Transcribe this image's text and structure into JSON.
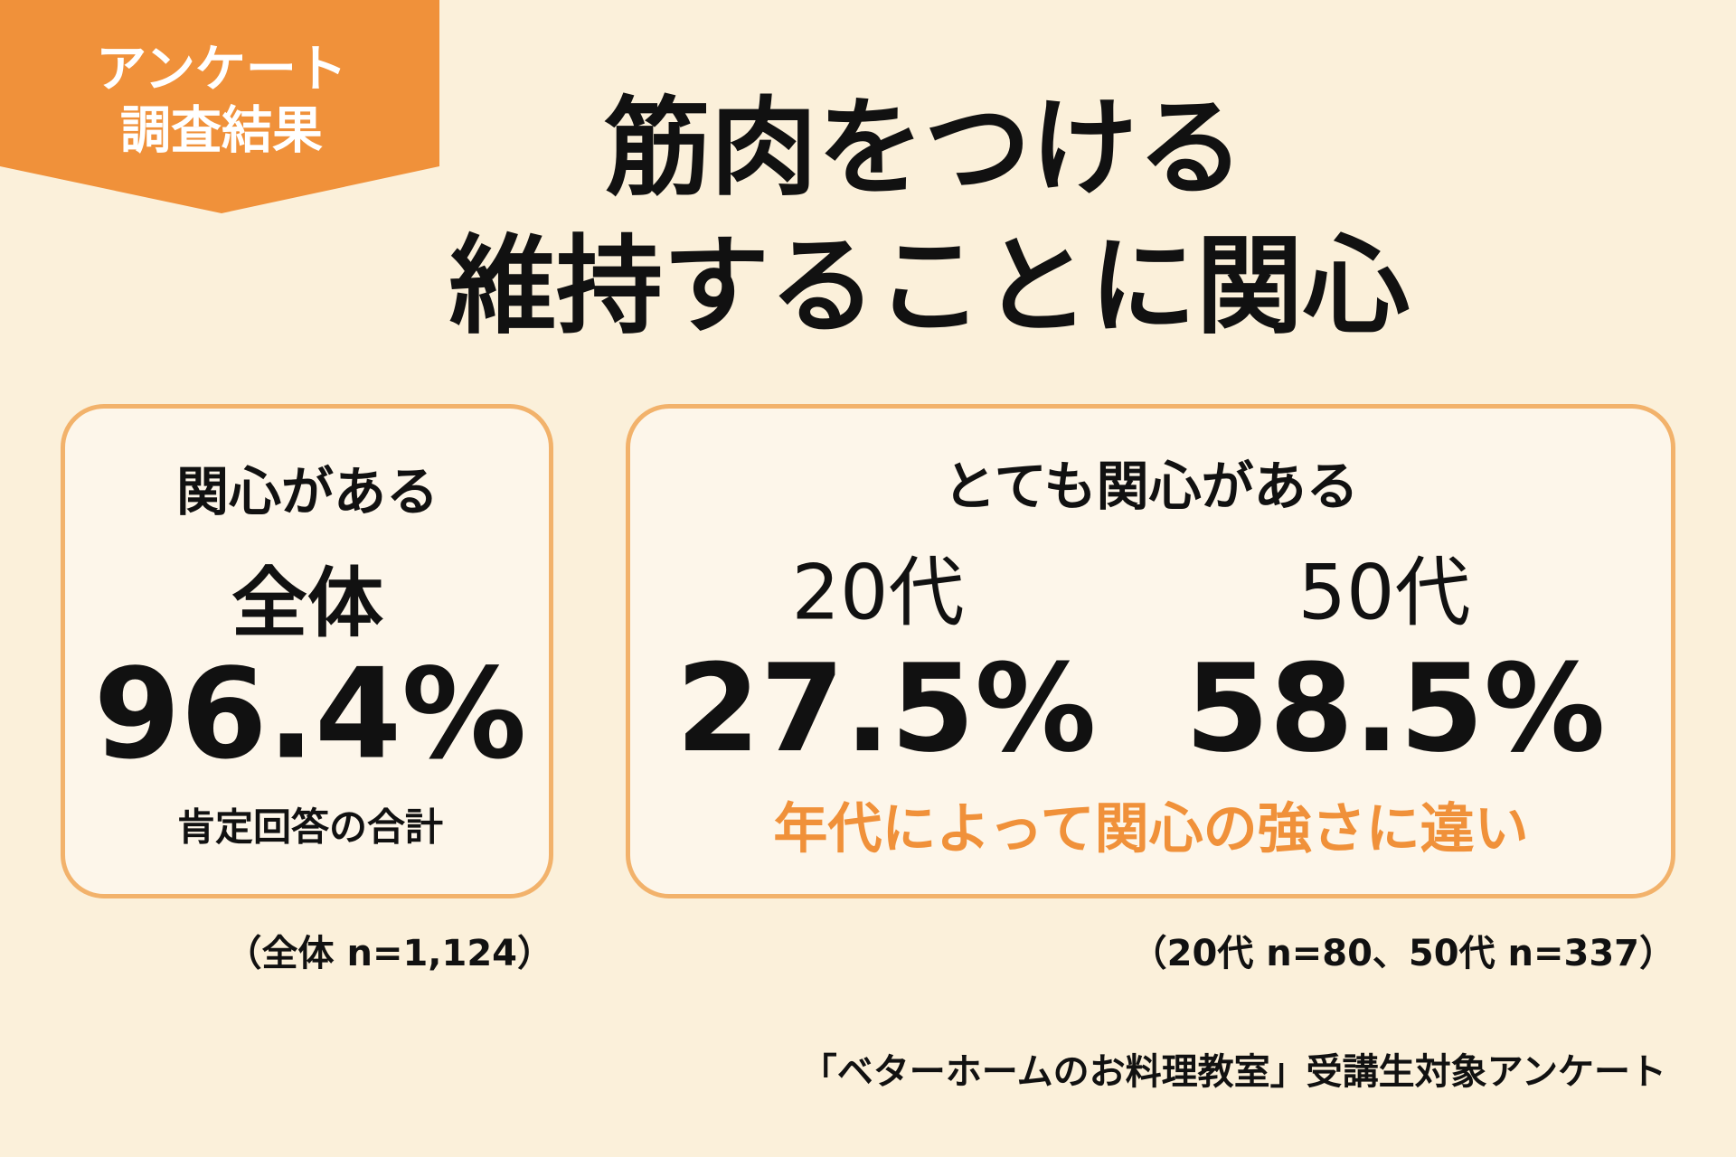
{
  "badge": {
    "lines": [
      "アンケート",
      "調査結果"
    ]
  },
  "title": {
    "lines": [
      "筋肉をつける",
      "維持することに関心"
    ]
  },
  "panels": [
    {
      "heading": "関心がある",
      "groups": [
        {
          "label": "全体",
          "value": "96.4%"
        }
      ],
      "caption": "肯定回答の合計",
      "note": "（全体 n=1,124）"
    },
    {
      "heading": "とても関心がある",
      "groups": [
        {
          "label": "20代",
          "value": "27.5%"
        },
        {
          "label": "50代",
          "value": "58.5%"
        }
      ],
      "caption": "年代によって関心の強さに違い",
      "note": "（20代 n=80、50代 n=337）"
    }
  ],
  "source": "「ベターホームのお料理教室」受講生対象アンケート"
}
